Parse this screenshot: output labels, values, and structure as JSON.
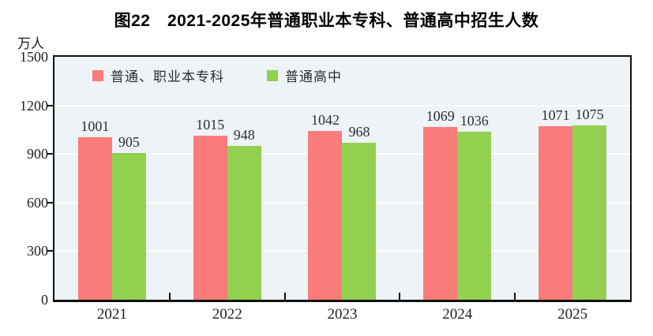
{
  "title": "图22　2021-2025年普通职业本专科、普通高中招生人数",
  "y_unit": "万人",
  "legend": [
    {
      "label": "普通、职业本专科",
      "color": "#fb7b7b"
    },
    {
      "label": "普通高中",
      "color": "#92d04f"
    }
  ],
  "chart_data": {
    "type": "bar",
    "title": "图22　2021-2025年普通职业本专科、普通高中招生人数",
    "ylabel": "万人",
    "categories": [
      "2021",
      "2022",
      "2023",
      "2024",
      "2025"
    ],
    "series": [
      {
        "name": "普通、职业本专科",
        "color": "#fb7b7b",
        "values": [
          1001,
          1015,
          1042,
          1069,
          1071
        ]
      },
      {
        "name": "普通高中",
        "color": "#92d04f",
        "values": [
          905,
          948,
          968,
          1036,
          1075
        ]
      }
    ],
    "ylim": [
      0,
      1500
    ],
    "yticks": [
      0,
      300,
      600,
      900,
      1200,
      1500
    ],
    "grid": true,
    "gridline_color": "#ffffff",
    "plot_background": "#edf3f6",
    "legend_position": "top-left-inside",
    "data_labels": true
  }
}
